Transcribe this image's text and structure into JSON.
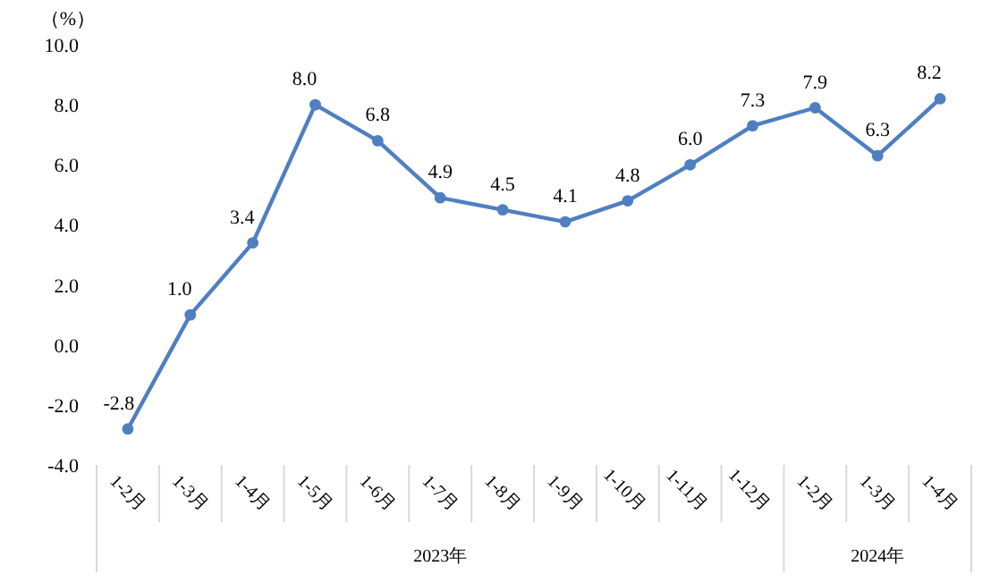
{
  "chart_data": {
    "type": "line",
    "ylabel": "（%）",
    "categories": [
      "1-2月",
      "1-3月",
      "1-4月",
      "1-5月",
      "1-6月",
      "1-7月",
      "1-8月",
      "1-9月",
      "1-10月",
      "1-11月",
      "1-12月",
      "1-2月",
      "1-3月",
      "1-4月"
    ],
    "series": [
      {
        "color": "#4f7fc0",
        "values": [
          -2.8,
          1.0,
          3.4,
          8.0,
          6.8,
          4.9,
          4.5,
          4.1,
          4.8,
          6.0,
          7.3,
          7.9,
          6.3,
          8.2
        ],
        "value_labels": [
          "-2.8",
          "1.0",
          "3.4",
          "8.0",
          "6.8",
          "4.9",
          "4.5",
          "4.1",
          "4.8",
          "6.0",
          "7.3",
          "7.9",
          "6.3",
          "8.2"
        ]
      }
    ],
    "ylim": [
      -4,
      10
    ],
    "yticks": [
      {
        "value": -4,
        "label": "-4.0"
      },
      {
        "value": -2,
        "label": "-2.0"
      },
      {
        "value": 0,
        "label": "0.0"
      },
      {
        "value": 2,
        "label": "2.0"
      },
      {
        "value": 4,
        "label": "4.0"
      },
      {
        "value": 6,
        "label": "6.0"
      },
      {
        "value": 8,
        "label": "8.0"
      },
      {
        "value": 10,
        "label": "10.0"
      }
    ],
    "marker": "circle",
    "grid": false,
    "annotations": [
      "2023年",
      "2024年"
    ]
  }
}
